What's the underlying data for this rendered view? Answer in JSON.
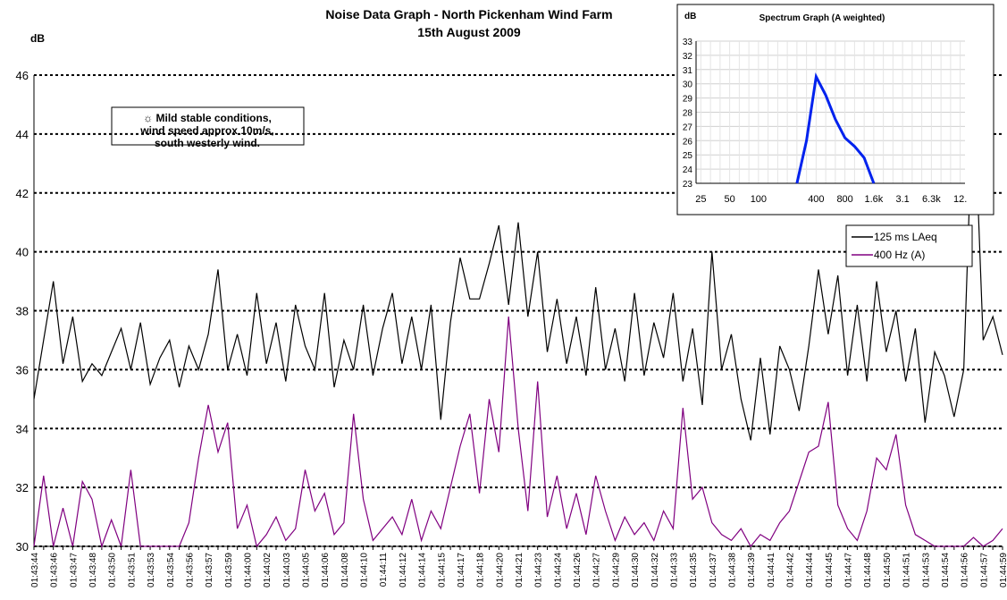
{
  "chart_data": [
    {
      "type": "line",
      "title": "Noise Data Graph -  North Pickenham Wind Farm",
      "subtitle": "15th August 2009",
      "y_label": "dB",
      "annotation": [
        "☼ Mild stable conditions,",
        "wind speed approx 10m/s,",
        "south westerly wind."
      ],
      "categories": [
        "01:43:44",
        null,
        "01:43:46",
        null,
        "01:43:47",
        null,
        "01:43:48",
        null,
        "01:43:50",
        null,
        "01:43:51",
        null,
        "01:43:53",
        null,
        "01:43:54",
        null,
        "01:43:56",
        null,
        "01:43:57",
        null,
        "01:43:59",
        null,
        "01:44:00",
        null,
        "01:44:02",
        null,
        "01:44:03",
        null,
        "01:44:05",
        null,
        "01:44:06",
        null,
        "01:44:08",
        null,
        "01:44:10",
        null,
        "01:44:11",
        null,
        "01:44:12",
        null,
        "01:44:14",
        null,
        "01:44:15",
        null,
        "01:44:17",
        null,
        "01:44:18",
        null,
        "01:44:20",
        null,
        "01:44:21",
        null,
        "01:44:23",
        null,
        "01:44:24",
        null,
        "01:44:26",
        null,
        "01:44:27",
        null,
        "01:44:29",
        null,
        "01:44:30",
        null,
        "01:44:32",
        null,
        "01:44:33",
        null,
        "01:44:35",
        null,
        "01:44:37",
        null,
        "01:44:38",
        null,
        "01:44:39",
        null,
        "01:44:41",
        null,
        "01:44:42",
        null,
        "01:44:44",
        null,
        "01:44:45",
        null,
        "01:44:47",
        null,
        "01:44:48",
        null,
        "01:44:50",
        null,
        "01:44:51",
        null,
        "01:44:53",
        null,
        "01:44:54",
        null,
        "01:44:56",
        null,
        "01:44:57",
        null,
        "01:44:59"
      ],
      "series": [
        {
          "name": "125 ms LAeq",
          "color": "#000000",
          "values": [
            35.0,
            37.0,
            39.0,
            36.2,
            37.8,
            35.6,
            36.2,
            35.8,
            36.6,
            37.4,
            36.0,
            37.6,
            35.5,
            36.4,
            37.0,
            35.4,
            36.8,
            36.0,
            37.2,
            39.4,
            36.0,
            37.2,
            35.8,
            38.6,
            36.2,
            37.6,
            35.6,
            38.2,
            36.8,
            36.0,
            38.6,
            35.4,
            37.0,
            36.0,
            38.2,
            35.8,
            37.4,
            38.6,
            36.2,
            37.8,
            36.0,
            38.2,
            34.3,
            37.6,
            39.8,
            38.4,
            38.4,
            39.6,
            40.9,
            38.2,
            41.0,
            37.8,
            40.0,
            36.6,
            38.4,
            36.2,
            37.8,
            35.8,
            38.8,
            36.0,
            37.4,
            35.6,
            38.6,
            35.8,
            37.6,
            36.4,
            38.6,
            35.6,
            37.4,
            34.8,
            40.0,
            36.0,
            37.2,
            35.0,
            33.6,
            36.4,
            33.8,
            36.8,
            36.0,
            34.6,
            36.8,
            39.4,
            37.2,
            39.2,
            35.8,
            38.2,
            35.6,
            39.0,
            36.6,
            38.0,
            35.6,
            37.4,
            34.2,
            36.6,
            35.8,
            34.4,
            36.0,
            45.8,
            37.0,
            37.8,
            36.5
          ]
        },
        {
          "name": "400 Hz (A)",
          "color": "#800080",
          "values": [
            30.0,
            32.4,
            30.0,
            31.3,
            30.0,
            32.2,
            31.6,
            30.0,
            30.9,
            30.0,
            32.6,
            30.0,
            30.0,
            30.0,
            30.0,
            30.0,
            30.8,
            33.0,
            34.8,
            33.2,
            34.2,
            30.6,
            31.4,
            30.0,
            30.4,
            31.0,
            30.2,
            30.6,
            32.6,
            31.2,
            31.8,
            30.4,
            30.8,
            34.5,
            31.6,
            30.2,
            30.6,
            31.0,
            30.4,
            31.6,
            30.2,
            31.2,
            30.6,
            32.0,
            33.4,
            34.5,
            31.8,
            35.0,
            33.2,
            37.8,
            34.0,
            31.2,
            35.6,
            31.0,
            32.4,
            30.6,
            31.8,
            30.4,
            32.4,
            31.2,
            30.2,
            31.0,
            30.4,
            30.8,
            30.2,
            31.2,
            30.6,
            34.7,
            31.6,
            32.0,
            30.8,
            30.4,
            30.2,
            30.6,
            30.0,
            30.4,
            30.2,
            30.8,
            31.2,
            32.2,
            33.2,
            33.4,
            34.9,
            31.4,
            30.6,
            30.2,
            31.2,
            33.0,
            32.6,
            33.8,
            31.4,
            30.4,
            30.2,
            30.0,
            30.0,
            30.0,
            30.0,
            30.3,
            30.0,
            30.2,
            30.6
          ]
        }
      ],
      "ylim": [
        30,
        46
      ],
      "yticks": [
        30,
        32,
        34,
        36,
        38,
        40,
        42,
        44,
        46
      ],
      "grid": true,
      "legend": "upper-right"
    },
    {
      "type": "line",
      "title": "Spectrum Graph (A weighted)",
      "y_label": "dB",
      "categories": [
        "25",
        null,
        null,
        "50",
        null,
        null,
        "100",
        null,
        null,
        null,
        null,
        null,
        "400",
        null,
        null,
        "800",
        null,
        null,
        "1.6k",
        null,
        null,
        "3.1",
        null,
        null,
        "6.3k",
        null,
        null,
        "12."
      ],
      "series": [
        {
          "name": null,
          "color": "#0022ee",
          "values": [
            null,
            null,
            null,
            null,
            null,
            null,
            null,
            null,
            null,
            null,
            23,
            26,
            30.5,
            29.2,
            27.5,
            26.2,
            25.6,
            24.8,
            23,
            null,
            null,
            null,
            null,
            null,
            null,
            null,
            null,
            null
          ]
        }
      ],
      "ylim": [
        23,
        33
      ],
      "yticks": [
        23,
        24,
        25,
        26,
        27,
        28,
        29,
        30,
        31,
        32,
        33
      ],
      "grid": true
    }
  ]
}
